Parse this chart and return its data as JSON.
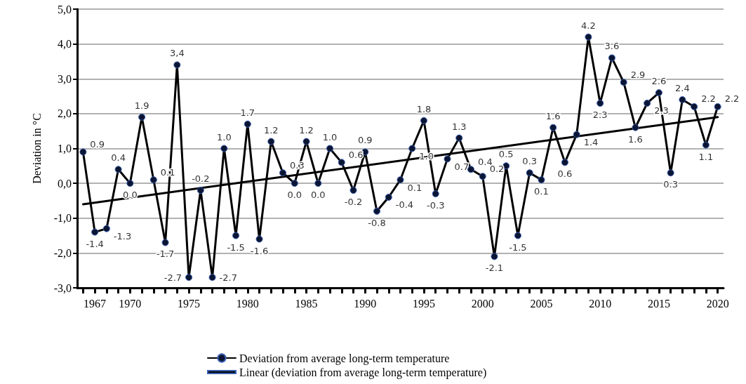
{
  "chart_data": {
    "type": "line",
    "ylabel": "Deviation in °C",
    "xlim": [
      1965.5,
      2020.5
    ],
    "xticks": [
      {
        "value": 1966,
        "label": null
      },
      1967,
      {
        "value": 1968,
        "label": null
      },
      {
        "value": 1969,
        "label": null
      },
      1970,
      {
        "value": 1971,
        "label": null
      },
      {
        "value": 1972,
        "label": null
      },
      {
        "value": 1973,
        "label": null
      },
      {
        "value": 1974,
        "label": null
      },
      1975,
      {
        "value": 1976,
        "label": null
      },
      {
        "value": 1977,
        "label": null
      },
      {
        "value": 1978,
        "label": null
      },
      {
        "value": 1979,
        "label": null
      },
      1980,
      {
        "value": 1981,
        "label": null
      },
      {
        "value": 1982,
        "label": null
      },
      {
        "value": 1983,
        "label": null
      },
      {
        "value": 1984,
        "label": null
      },
      1985,
      {
        "value": 1986,
        "label": null
      },
      {
        "value": 1987,
        "label": null
      },
      {
        "value": 1988,
        "label": null
      },
      {
        "value": 1989,
        "label": null
      },
      1990,
      {
        "value": 1991,
        "label": null
      },
      {
        "value": 1992,
        "label": null
      },
      {
        "value": 1993,
        "label": null
      },
      {
        "value": 1994,
        "label": null
      },
      1995,
      {
        "value": 1996,
        "label": null
      },
      {
        "value": 1997,
        "label": null
      },
      {
        "value": 1998,
        "label": null
      },
      {
        "value": 1999,
        "label": null
      },
      2000,
      {
        "value": 2001,
        "label": null
      },
      {
        "value": 2002,
        "label": null
      },
      {
        "value": 2003,
        "label": null
      },
      {
        "value": 2004,
        "label": null
      },
      2005,
      {
        "value": 2006,
        "label": null
      },
      {
        "value": 2007,
        "label": null
      },
      {
        "value": 2008,
        "label": null
      },
      {
        "value": 2009,
        "label": null
      },
      2010,
      {
        "value": 2011,
        "label": null
      },
      {
        "value": 2012,
        "label": null
      },
      {
        "value": 2013,
        "label": null
      },
      {
        "value": 2014,
        "label": null
      },
      2015,
      {
        "value": 2016,
        "label": null
      },
      {
        "value": 2017,
        "label": null
      },
      {
        "value": 2018,
        "label": null
      },
      {
        "value": 2019,
        "label": null
      },
      2020
    ],
    "ylim": [
      -3,
      5
    ],
    "yticks": [
      {
        "value": -3,
        "label": "-3,0"
      },
      {
        "value": -2,
        "label": "-2,0"
      },
      {
        "value": -1,
        "label": "-1,0"
      },
      {
        "value": 0,
        "label": "0,0"
      },
      {
        "value": 1,
        "label": "1,0"
      },
      {
        "value": 2,
        "label": "2,0"
      },
      {
        "value": 3,
        "label": "3,0"
      },
      {
        "value": 4,
        "label": "4,0"
      },
      {
        "value": 5,
        "label": "5,0"
      }
    ],
    "grid": "y",
    "legend": "bottom",
    "line_style": "solid",
    "series": [
      {
        "name": "Deviation from average long-term temperature",
        "color": "#000000",
        "marker": "circle",
        "x": [
          1966,
          1967,
          1968,
          1969,
          1970,
          1971,
          1972,
          1973,
          1974,
          1975,
          1976,
          1977,
          1978,
          1979,
          1980,
          1981,
          1982,
          1983,
          1984,
          1985,
          1986,
          1987,
          1988,
          1989,
          1990,
          1991,
          1992,
          1993,
          1994,
          1995,
          1996,
          1997,
          1998,
          1999,
          2000,
          2001,
          2002,
          2003,
          2004,
          2005,
          2006,
          2007,
          2008,
          2009,
          2010,
          2011,
          2012,
          2013,
          2014,
          2015,
          2016,
          2017,
          2018,
          2019,
          2020
        ],
        "values": [
          0.9,
          -1.4,
          -1.3,
          0.4,
          0.0,
          1.9,
          0.1,
          -1.7,
          3.4,
          -2.7,
          -0.2,
          -2.7,
          1.0,
          -1.5,
          1.7,
          -1.6,
          1.2,
          0.3,
          0.0,
          1.2,
          0.0,
          1.0,
          0.6,
          -0.2,
          0.9,
          -0.8,
          -0.4,
          0.1,
          1.0,
          1.8,
          -0.3,
          0.7,
          1.3,
          0.4,
          0.2,
          -2.1,
          0.5,
          -1.5,
          0.3,
          0.1,
          1.6,
          0.6,
          1.4,
          4.2,
          2.3,
          3.6,
          2.9,
          1.6,
          2.3,
          2.6,
          0.3,
          2.4,
          2.2,
          1.1,
          2.2
        ],
        "value_labels": [
          "0.9",
          "-1.4",
          "-1.3",
          "0.4",
          "0.0",
          "1.9",
          "0.1",
          "-1.7",
          "3,4",
          "-2.7",
          "-0.2",
          "-2.7",
          "1.0",
          "-1.5",
          "1.7",
          "-1.6",
          "1.2",
          "0.3",
          "0.0",
          "1.2",
          "0.0",
          "1.0",
          "0.6",
          "-0.2",
          "0.9",
          "-0.8",
          "-0.4",
          "0.1",
          "1.0",
          "1.8",
          "-0.3",
          "0.7",
          "1.3",
          "0.4",
          "0.2",
          "-2.1",
          "0.5",
          "-1.5",
          "0.3",
          "0.1",
          "1.6",
          "0.6",
          "1.4",
          "4.2",
          "2.3",
          "3.6",
          "2.9",
          "1.6",
          "2.3",
          "2.6",
          "0.3",
          "2.4",
          "2.2",
          "1.1",
          "2.2"
        ]
      },
      {
        "name": "Linear (deviation from average long-term temperature)",
        "color": "#000000",
        "marker": "none",
        "x": [
          1966,
          2020
        ],
        "values": [
          -0.6,
          1.9
        ]
      }
    ]
  }
}
